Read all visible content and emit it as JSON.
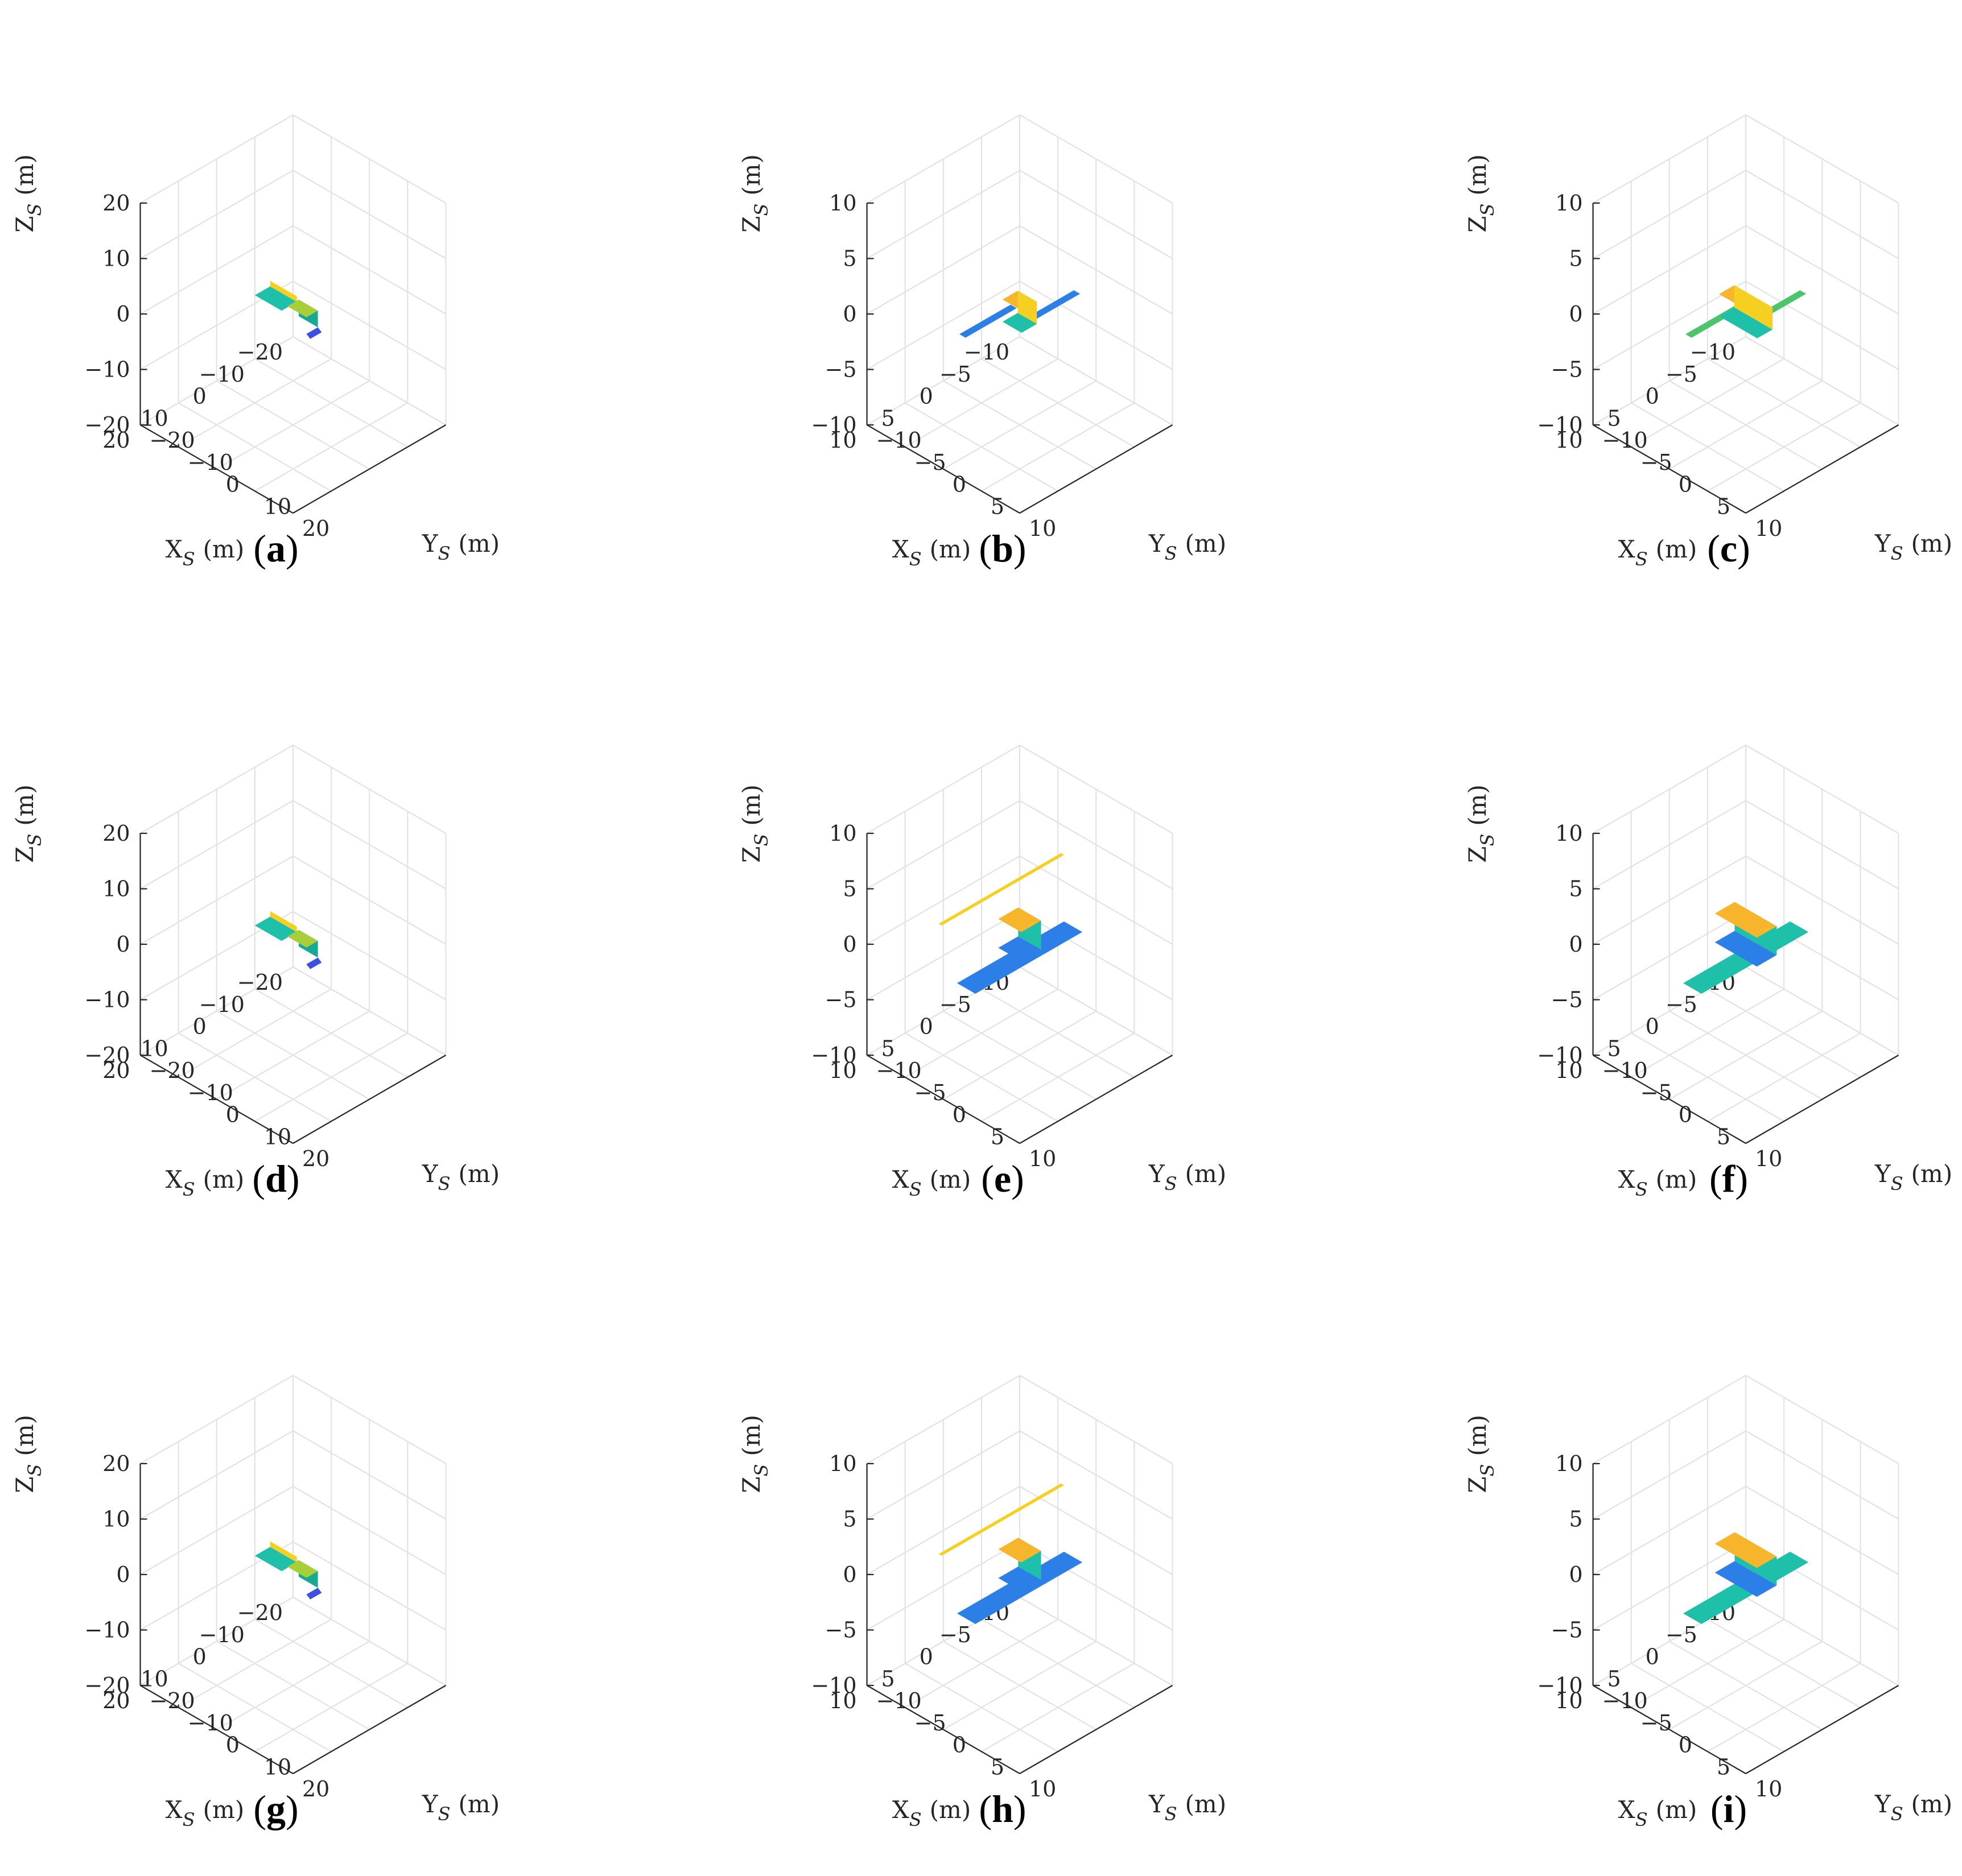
{
  "figure": {
    "panel_labels": [
      "(a)",
      "(b)",
      "(c)",
      "(d)",
      "(e)",
      "(f)",
      "(g)",
      "(h)",
      "(i)"
    ]
  },
  "axis_labels": {
    "x": {
      "base": "X",
      "sub": "S",
      "unit": "(m)"
    },
    "y": {
      "base": "Y",
      "sub": "S",
      "unit": "(m)"
    },
    "z": {
      "base": "Z",
      "sub": "S",
      "unit": "(m)"
    }
  },
  "colors": {
    "blue": "#2c7fe6",
    "blue_dark": "#3f4fe0",
    "teal": "#1fc0aa",
    "teal_dark": "#17a993",
    "green": "#4cc46a",
    "yellow": "#f6d021",
    "orange": "#f7b52c",
    "yellow_green": "#a8cf3a"
  },
  "chart_data": [
    {
      "type": "3d-surface",
      "panel": "(a)",
      "xlabel": "X_S (m)",
      "ylabel": "Y_S (m)",
      "zlabel": "Z_S (m)",
      "xlim": [
        -20,
        20
      ],
      "ylim": [
        -20,
        20
      ],
      "zlim": [
        -20,
        20
      ],
      "xticks": [
        -20,
        -10,
        0,
        10,
        20
      ],
      "yticks": [
        -20,
        -10,
        0,
        10,
        20
      ],
      "zticks": [
        -20,
        -10,
        0,
        10,
        20
      ],
      "grid": true,
      "view": "isometric",
      "model": {
        "panels": "two-sided",
        "body_length": 6,
        "panel_color": "teal",
        "body_color": "yellow"
      }
    },
    {
      "type": "3d-surface",
      "panel": "(b)",
      "xlabel": "X_S (m)",
      "ylabel": "Y_S (m)",
      "zlabel": "Z_S (m)",
      "xlim": [
        -10,
        10
      ],
      "ylim": [
        -10,
        10
      ],
      "zlim": [
        -10,
        10
      ],
      "xticks": [
        -10,
        -5,
        0,
        5,
        10
      ],
      "yticks": [
        -10,
        -5,
        0,
        5,
        10
      ],
      "zticks": [
        -10,
        -5,
        0,
        5,
        10
      ],
      "grid": true,
      "view": "isometric",
      "model": {
        "panels": "thin-wings",
        "body_length": 2.5,
        "panel_color": "blue",
        "body_color": "yellow"
      }
    },
    {
      "type": "3d-surface",
      "panel": "(c)",
      "xlabel": "X_S (m)",
      "ylabel": "Y_S (m)",
      "zlabel": "Z_S (m)",
      "xlim": [
        -10,
        10
      ],
      "ylim": [
        -10,
        10
      ],
      "zlim": [
        -10,
        10
      ],
      "xticks": [
        -10,
        -5,
        0,
        5,
        10
      ],
      "yticks": [
        -10,
        -5,
        0,
        5,
        10
      ],
      "zticks": [
        -10,
        -5,
        0,
        5,
        10
      ],
      "grid": true,
      "view": "isometric",
      "model": {
        "panels": "thin-wings",
        "body_length": 5,
        "panel_color": "green",
        "body_color": "yellow"
      }
    },
    {
      "type": "3d-surface",
      "panel": "(d)",
      "xlabel": "X_S (m)",
      "ylabel": "Y_S (m)",
      "zlabel": "Z_S (m)",
      "xlim": [
        -20,
        20
      ],
      "ylim": [
        -20,
        20
      ],
      "zlim": [
        -20,
        20
      ],
      "xticks": [
        -20,
        -10,
        0,
        10,
        20
      ],
      "yticks": [
        -20,
        -10,
        0,
        10,
        20
      ],
      "zticks": [
        -20,
        -10,
        0,
        10,
        20
      ],
      "grid": true,
      "view": "isometric",
      "model": {
        "panels": "two-sided",
        "body_length": 6,
        "panel_color": "teal",
        "body_color": "yellow"
      }
    },
    {
      "type": "3d-surface",
      "panel": "(e)",
      "xlabel": "X_S (m)",
      "ylabel": "Y_S (m)",
      "zlabel": "Z_S (m)",
      "xlim": [
        -10,
        10
      ],
      "ylim": [
        -10,
        10
      ],
      "zlim": [
        -10,
        10
      ],
      "xticks": [
        -10,
        -5,
        0,
        5,
        10
      ],
      "yticks": [
        -10,
        -5,
        0,
        5,
        10
      ],
      "zticks": [
        -10,
        -5,
        0,
        5,
        10
      ],
      "grid": true,
      "view": "isometric",
      "model": {
        "panels": "wide-with-boom",
        "body_length": 3,
        "panel_color": "blue",
        "body_color": "yellow"
      }
    },
    {
      "type": "3d-surface",
      "panel": "(f)",
      "xlabel": "X_S (m)",
      "ylabel": "Y_S (m)",
      "zlabel": "Z_S (m)",
      "xlim": [
        -10,
        10
      ],
      "ylim": [
        -10,
        10
      ],
      "zlim": [
        -10,
        10
      ],
      "xticks": [
        -10,
        -5,
        0,
        5,
        10
      ],
      "yticks": [
        -10,
        -5,
        0,
        5,
        10
      ],
      "zticks": [
        -10,
        -5,
        0,
        5,
        10
      ],
      "grid": true,
      "view": "isometric",
      "model": {
        "panels": "wide",
        "body_length": 5.5,
        "panel_color": "teal",
        "body_color": "yellow"
      }
    },
    {
      "type": "3d-surface",
      "panel": "(g)",
      "xlabel": "X_S (m)",
      "ylabel": "Y_S (m)",
      "zlabel": "Z_S (m)",
      "xlim": [
        -20,
        20
      ],
      "ylim": [
        -20,
        20
      ],
      "zlim": [
        -20,
        20
      ],
      "xticks": [
        -20,
        -10,
        0,
        10,
        20
      ],
      "yticks": [
        -20,
        -10,
        0,
        10,
        20
      ],
      "zticks": [
        -20,
        -10,
        0,
        10,
        20
      ],
      "grid": true,
      "view": "isometric",
      "model": {
        "panels": "two-sided",
        "body_length": 6,
        "panel_color": "teal",
        "body_color": "yellow"
      }
    },
    {
      "type": "3d-surface",
      "panel": "(h)",
      "xlabel": "X_S (m)",
      "ylabel": "Y_S (m)",
      "zlabel": "Z_S (m)",
      "xlim": [
        -10,
        10
      ],
      "ylim": [
        -10,
        10
      ],
      "zlim": [
        -10,
        10
      ],
      "xticks": [
        -10,
        -5,
        0,
        5,
        10
      ],
      "yticks": [
        -10,
        -5,
        0,
        5,
        10
      ],
      "zticks": [
        -10,
        -5,
        0,
        5,
        10
      ],
      "grid": true,
      "view": "isometric",
      "model": {
        "panels": "wide-with-boom",
        "body_length": 3,
        "panel_color": "blue",
        "body_color": "yellow"
      }
    },
    {
      "type": "3d-surface",
      "panel": "(i)",
      "xlabel": "X_S (m)",
      "ylabel": "Y_S (m)",
      "zlabel": "Z_S (m)",
      "xlim": [
        -10,
        10
      ],
      "ylim": [
        -10,
        10
      ],
      "zlim": [
        -10,
        10
      ],
      "xticks": [
        -10,
        -5,
        0,
        5,
        10
      ],
      "yticks": [
        -10,
        -5,
        0,
        5,
        10
      ],
      "zticks": [
        -10,
        -5,
        0,
        5,
        10
      ],
      "grid": true,
      "view": "isometric",
      "model": {
        "panels": "wide",
        "body_length": 5.5,
        "panel_color": "teal",
        "body_color": "yellow"
      }
    }
  ]
}
